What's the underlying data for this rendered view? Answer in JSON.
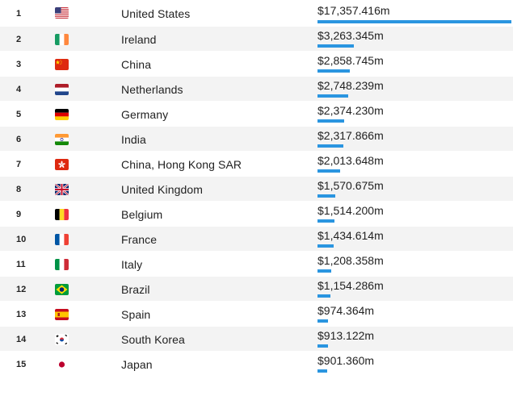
{
  "rows": [
    {
      "rank": "1",
      "flag": "us-flag-icon",
      "country": "United States",
      "value": "$17,357.416m",
      "fraction": 1.0
    },
    {
      "rank": "2",
      "flag": "ireland-flag-icon",
      "country": "Ireland",
      "value": "$3,263.345m",
      "fraction": 0.188
    },
    {
      "rank": "3",
      "flag": "china-flag-icon",
      "country": "China",
      "value": "$2,858.745m",
      "fraction": 0.1647
    },
    {
      "rank": "4",
      "flag": "netherlands-flag-icon",
      "country": "Netherlands",
      "value": "$2,748.239m",
      "fraction": 0.1583
    },
    {
      "rank": "5",
      "flag": "germany-flag-icon",
      "country": "Germany",
      "value": "$2,374.230m",
      "fraction": 0.1368
    },
    {
      "rank": "6",
      "flag": "india-flag-icon",
      "country": "India",
      "value": "$2,317.866m",
      "fraction": 0.1335
    },
    {
      "rank": "7",
      "flag": "hong-kong-flag-icon",
      "country": "China, Hong Kong SAR",
      "value": "$2,013.648m",
      "fraction": 0.116
    },
    {
      "rank": "8",
      "flag": "uk-flag-icon",
      "country": "United Kingdom",
      "value": "$1,570.675m",
      "fraction": 0.0905
    },
    {
      "rank": "9",
      "flag": "belgium-flag-icon",
      "country": "Belgium",
      "value": "$1,514.200m",
      "fraction": 0.0872
    },
    {
      "rank": "10",
      "flag": "france-flag-icon",
      "country": "France",
      "value": "$1,434.614m",
      "fraction": 0.0827
    },
    {
      "rank": "11",
      "flag": "italy-flag-icon",
      "country": "Italy",
      "value": "$1,208.358m",
      "fraction": 0.0696
    },
    {
      "rank": "12",
      "flag": "brazil-flag-icon",
      "country": "Brazil",
      "value": "$1,154.286m",
      "fraction": 0.0665
    },
    {
      "rank": "13",
      "flag": "spain-flag-icon",
      "country": "Spain",
      "value": "$974.364m",
      "fraction": 0.0561
    },
    {
      "rank": "14",
      "flag": "south-korea-flag-icon",
      "country": "South Korea",
      "value": "$913.122m",
      "fraction": 0.0526
    },
    {
      "rank": "15",
      "flag": "japan-flag-icon",
      "country": "Japan",
      "value": "$901.360m",
      "fraction": 0.0519
    }
  ],
  "colors": {
    "bar": "#2a95e0",
    "alt_row": "#f3f3f3"
  }
}
